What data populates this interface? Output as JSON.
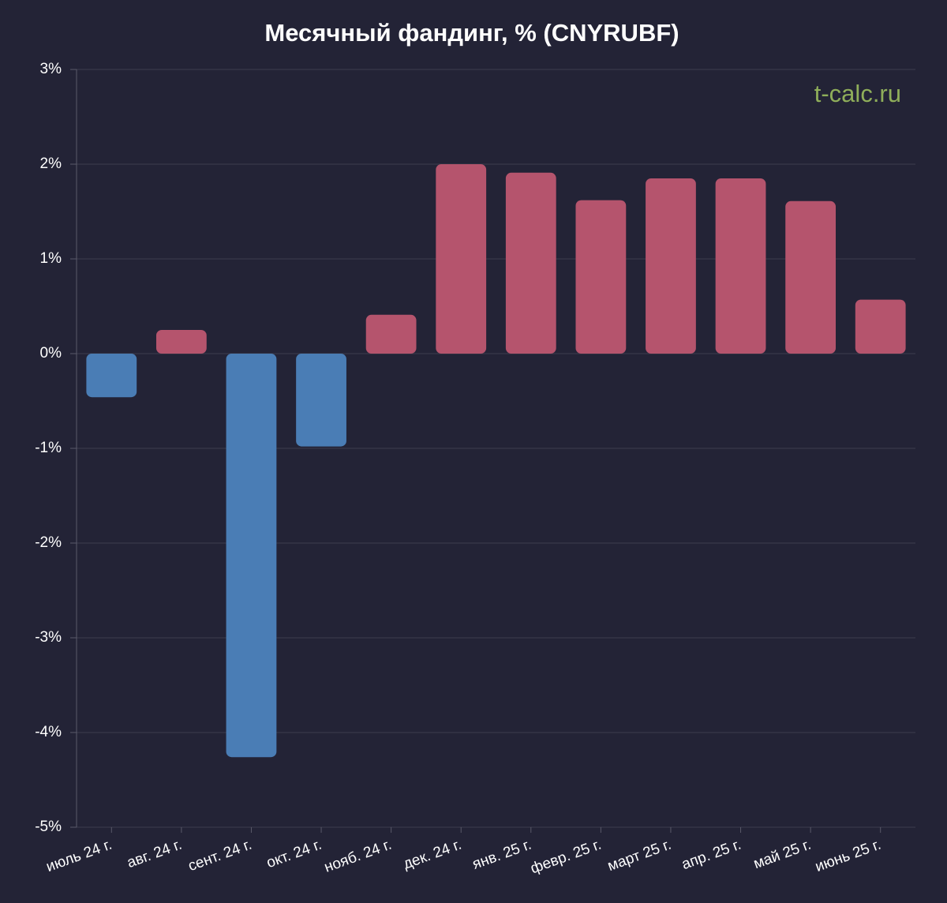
{
  "chart_data": {
    "type": "bar",
    "title": "Месячный фандинг, % (CNYRUBF)",
    "watermark": "t-calc.ru",
    "categories": [
      "июль 24 г.",
      "авг. 24 г.",
      "сент. 24 г.",
      "окт. 24 г.",
      "нояб. 24 г.",
      "дек. 24 г.",
      "янв. 25 г.",
      "февр. 25 г.",
      "март 25 г.",
      "апр. 25 г.",
      "май 25 г.",
      "июнь 25 г."
    ],
    "values": [
      -0.46,
      0.25,
      -4.26,
      -0.98,
      0.41,
      2.0,
      1.91,
      1.62,
      1.85,
      1.85,
      1.61,
      0.57
    ],
    "positive_color": "#b5546d",
    "negative_color": "#4a7db5",
    "ylim": [
      -5,
      3
    ],
    "yticks": [
      {
        "value": -5,
        "label": "-5%"
      },
      {
        "value": -4,
        "label": "-4%"
      },
      {
        "value": -3,
        "label": "-3%"
      },
      {
        "value": -2,
        "label": "-2%"
      },
      {
        "value": -1,
        "label": "-1%"
      },
      {
        "value": 0,
        "label": "0%"
      },
      {
        "value": 1,
        "label": "1%"
      },
      {
        "value": 2,
        "label": "2%"
      },
      {
        "value": 3,
        "label": "3%"
      }
    ],
    "grid": true
  }
}
